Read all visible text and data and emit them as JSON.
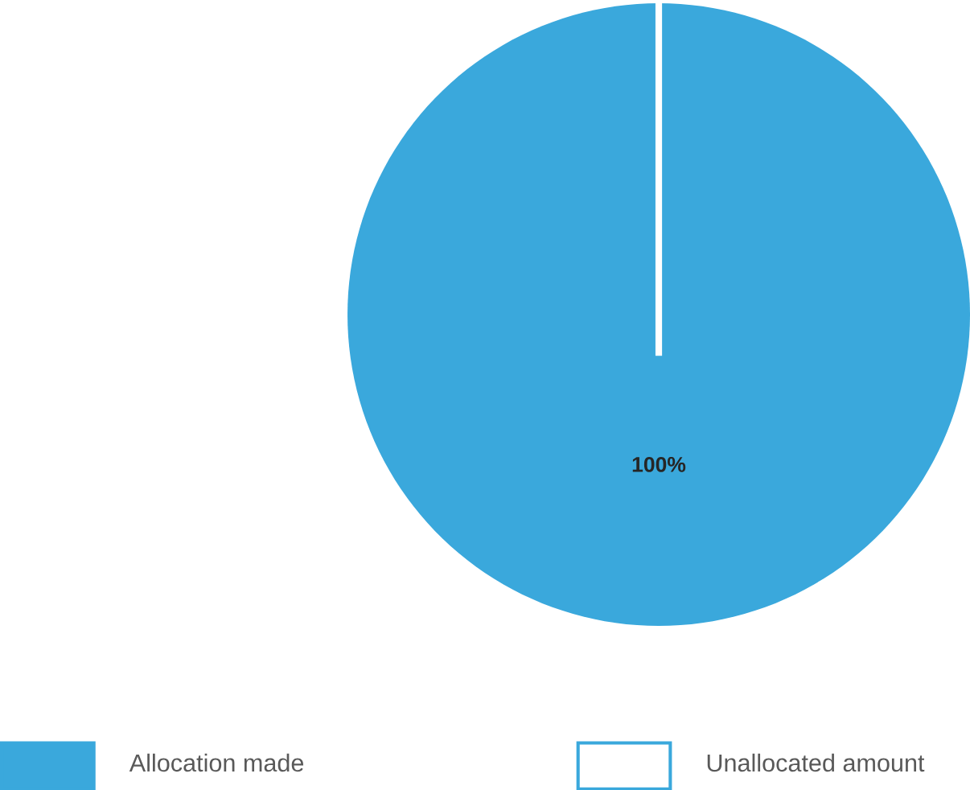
{
  "chart_data": {
    "type": "pie",
    "categories": [
      "Allocation made",
      "Unallocated amount"
    ],
    "values": [
      100,
      0
    ],
    "colors": [
      "#3aa8dc",
      "#ffffff"
    ],
    "value_labels": [
      "100%",
      null
    ],
    "legend": "bottom"
  }
}
